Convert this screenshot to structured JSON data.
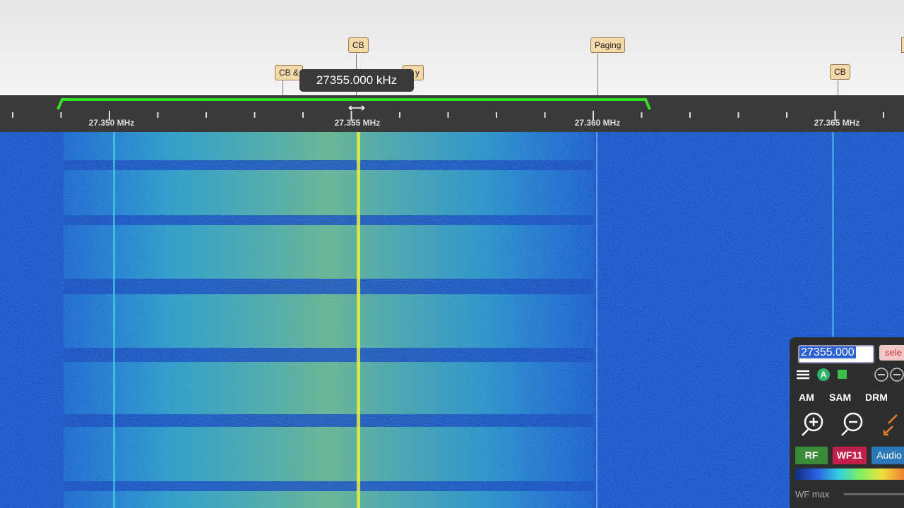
{
  "bookmarks": [
    {
      "label": "CB"
    },
    {
      "label": "Paging"
    },
    {
      "label": "CB"
    },
    {
      "label": "CB &"
    },
    {
      "label": "y"
    }
  ],
  "tooltip": "27355.000 kHz",
  "scale": {
    "labels": [
      "27.350 MHz",
      "27.355 MHz",
      "27.360 MHz",
      "27.365 MHz"
    ]
  },
  "panel": {
    "frequency": "27355.000",
    "select_button": "sele",
    "modes": [
      "AM",
      "SAM",
      "DRM"
    ],
    "tabs": [
      "RF",
      "WF11",
      "Audio"
    ],
    "slider_label": "WF max"
  }
}
